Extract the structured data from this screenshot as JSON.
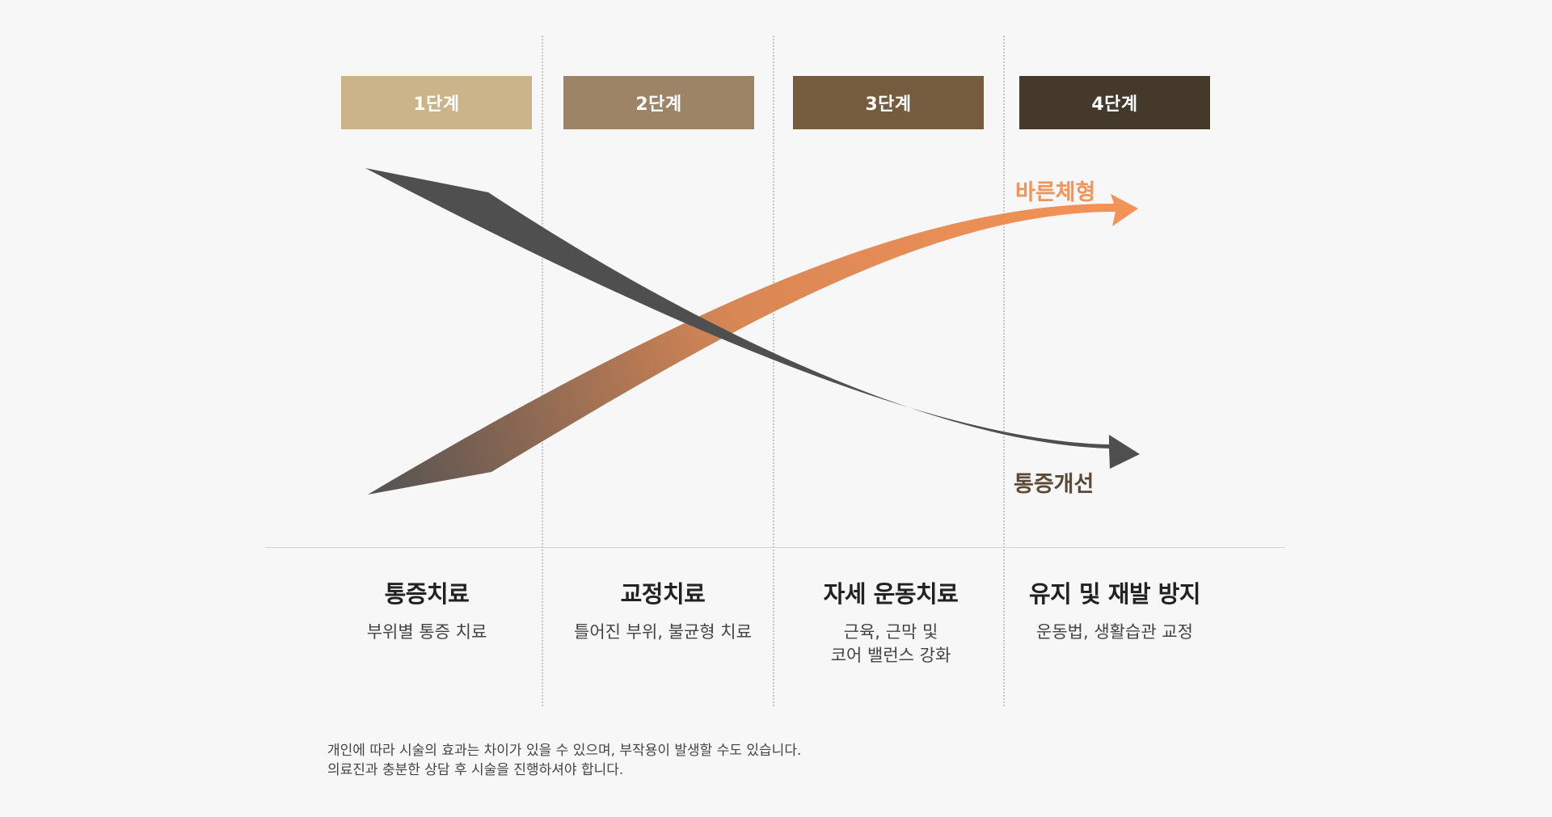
{
  "stages": [
    {
      "label": "1단계",
      "color": "#cbb38a",
      "title": "통증치료",
      "lines": [
        "부위별 통증 치료"
      ]
    },
    {
      "label": "2단계",
      "color": "#9d8467",
      "title": "교정치료",
      "lines": [
        "틀어진 부위, 불균형 치료"
      ]
    },
    {
      "label": "3단계",
      "color": "#755c3f",
      "title": "자세 운동치료",
      "lines": [
        "근육, 근막 및",
        "코어 밸런스 강화"
      ]
    },
    {
      "label": "4단계",
      "color": "#45392c",
      "title": "유지 및 재발 방지",
      "lines": [
        "운동법, 생활습관 교정"
      ]
    }
  ],
  "curves": {
    "posture": {
      "label": "바른체형",
      "color": "#f59357",
      "trend": "rising"
    },
    "pain": {
      "label": "통증개선",
      "color": "#4f4f4f",
      "label_color": "#5c4a36",
      "trend": "falling"
    }
  },
  "notice": [
    "개인에 따라 시술의 효과는 차이가 있을 수 있으며, 부작용이 발생할 수도 있습니다.",
    "의료진과 충분한 상담 후 시술을 진행하셔야 합니다."
  ]
}
